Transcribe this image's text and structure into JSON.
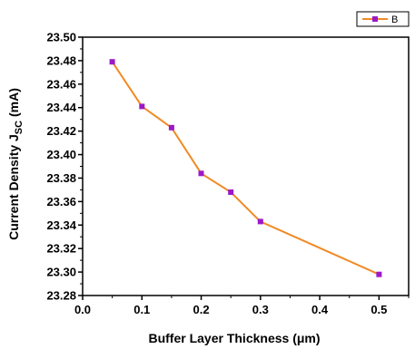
{
  "chart_data": {
    "type": "line",
    "title": "",
    "xlabel": "Buffer Layer  Thickness (μm)",
    "ylabel": {
      "prefix": "Current Density J",
      "sub": "SC",
      "suffix": " (mA)"
    },
    "xlim": [
      0.0,
      0.55
    ],
    "ylim": [
      23.28,
      23.5
    ],
    "xticks": [
      "0.0",
      "0.1",
      "0.2",
      "0.3",
      "0.4",
      "0.5"
    ],
    "yticks": [
      "23.28",
      "23.30",
      "23.32",
      "23.34",
      "23.36",
      "23.38",
      "23.40",
      "23.42",
      "23.44",
      "23.46",
      "23.48",
      "23.50"
    ],
    "grid": false,
    "legend_position": "top-right",
    "series": [
      {
        "name": "B",
        "line_color": "#F08A24",
        "marker_color": "#9B19C8",
        "marker": "square",
        "x": [
          0.05,
          0.1,
          0.15,
          0.2,
          0.25,
          0.3,
          0.5
        ],
        "y": [
          23.479,
          23.441,
          23.423,
          23.384,
          23.368,
          23.343,
          23.298
        ]
      }
    ]
  }
}
